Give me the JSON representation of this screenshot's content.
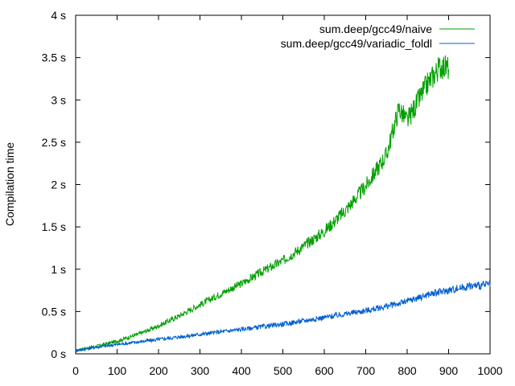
{
  "chart_data": {
    "type": "line",
    "ylabel": "Compilation time",
    "xlim": [
      0,
      1000
    ],
    "ylim": [
      0,
      4
    ],
    "x_ticks": [
      0,
      100,
      200,
      300,
      400,
      500,
      600,
      700,
      800,
      900,
      1000
    ],
    "y_ticks": [
      0,
      0.5,
      1,
      1.5,
      2,
      2.5,
      3,
      3.5,
      4
    ],
    "y_tick_labels": [
      "0 s",
      "0.5 s",
      "1 s",
      "1.5 s",
      "2 s",
      "2.5 s",
      "3 s",
      "3.5 s",
      "4 s"
    ],
    "grid": false,
    "legend_position": "top-right",
    "series": [
      {
        "name": "sum.deep/gcc49/naive",
        "color": "#00a000",
        "x": [
          0,
          50,
          100,
          150,
          200,
          250,
          300,
          350,
          400,
          450,
          500,
          550,
          600,
          650,
          700,
          750,
          780,
          800,
          850,
          880,
          900
        ],
        "y": [
          0.04,
          0.09,
          0.15,
          0.23,
          0.33,
          0.45,
          0.58,
          0.71,
          0.83,
          0.97,
          1.1,
          1.27,
          1.45,
          1.69,
          1.98,
          2.35,
          2.9,
          2.75,
          3.2,
          3.4,
          3.38
        ]
      },
      {
        "name": "sum.deep/gcc49/variadic_foldl",
        "color": "#0060d0",
        "x": [
          0,
          50,
          100,
          150,
          200,
          250,
          300,
          350,
          400,
          450,
          500,
          550,
          600,
          650,
          700,
          750,
          800,
          850,
          900,
          950,
          1000
        ],
        "y": [
          0.04,
          0.08,
          0.11,
          0.14,
          0.17,
          0.2,
          0.23,
          0.26,
          0.29,
          0.32,
          0.35,
          0.39,
          0.43,
          0.47,
          0.51,
          0.56,
          0.62,
          0.7,
          0.75,
          0.8,
          0.82
        ]
      }
    ]
  }
}
